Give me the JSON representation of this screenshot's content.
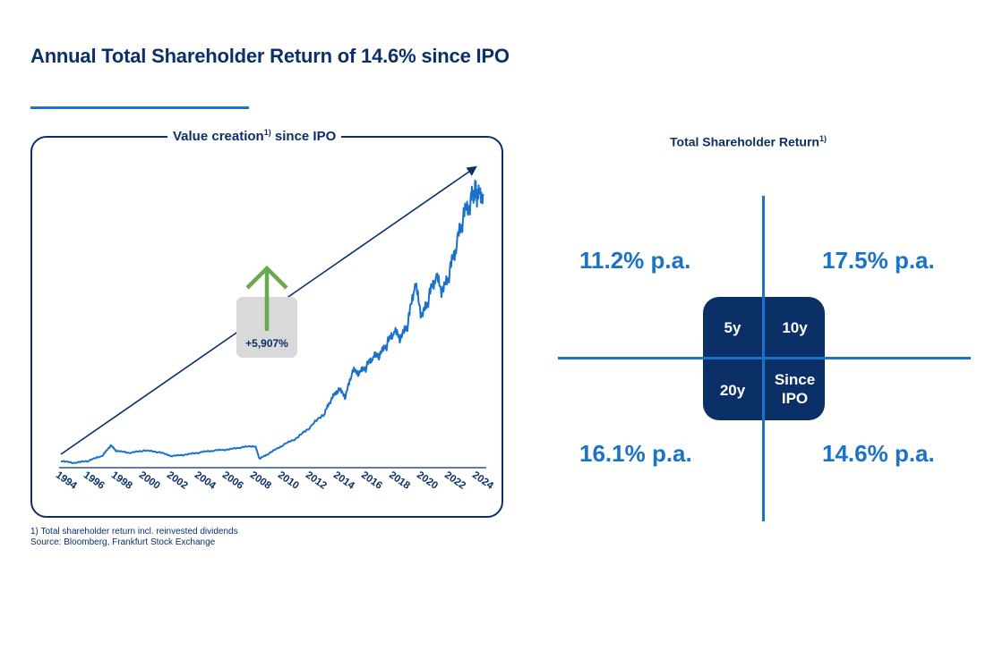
{
  "header": {
    "title": "Annual Total Shareholder Return of 14.6% since IPO"
  },
  "colors": {
    "navy": "#0b3068",
    "blue": "#1a73c9",
    "green": "#6aa84f",
    "callout_bg": "#d9d9d9"
  },
  "icons": {
    "arrow_up": "green-up-arrow-icon",
    "trend_arrow": "trend-arrow-icon"
  },
  "chart_data": {
    "type": "line",
    "title": "Value creation",
    "title_sup": "1)",
    "title_suffix": " since IPO",
    "x_tick_labels": [
      "1994",
      "1996",
      "1998",
      "2000",
      "2002",
      "2004",
      "2006",
      "2008",
      "2010",
      "2012",
      "2014",
      "2016",
      "2018",
      "2020",
      "2022",
      "2024"
    ],
    "xlim": [
      1994,
      2024.5
    ],
    "ylim": [
      0,
      6000
    ],
    "grid": false,
    "legend": "none",
    "annotation": {
      "text": "+5,907%",
      "value": 5907
    },
    "series": [
      {
        "x": [
          1994,
          1995,
          1996,
          1997,
          1997.6,
          1998,
          1999,
          2000,
          2001,
          2002,
          2003,
          2004,
          2005,
          2006,
          2007,
          2008,
          2008.3,
          2009,
          2010,
          2011,
          2012,
          2013,
          2013.5,
          2014,
          2014.5,
          2015,
          2015.5,
          2016,
          2016.5,
          2017,
          2017.5,
          2018,
          2018.5,
          2019,
          2019.5,
          2020,
          2020.5,
          2021,
          2021.5,
          2022,
          2022.5,
          2023,
          2023.5,
          2023.8,
          2024,
          2024.4
        ],
        "y": [
          100,
          60,
          110,
          220,
          440,
          320,
          280,
          330,
          300,
          210,
          240,
          290,
          330,
          350,
          400,
          430,
          150,
          270,
          450,
          600,
          850,
          1150,
          1450,
          1650,
          1500,
          2050,
          2000,
          2150,
          2350,
          2400,
          2650,
          2900,
          2750,
          3100,
          3950,
          3200,
          3650,
          4100,
          3750,
          4200,
          4800,
          5400,
          5700,
          6000,
          5800,
          5907
        ]
      }
    ]
  },
  "footnote": {
    "line1": "1) Total shareholder return incl. reinvested dividends",
    "line2": "Source: Bloomberg, Frankfurt Stock Exchange"
  },
  "tsr": {
    "title": "Total Shareholder Return",
    "title_sup": "1)",
    "q_tl_value": "11.2% p.a.",
    "q_tr_value": "17.5% p.a.",
    "q_bl_value": "16.1% p.a.",
    "q_br_value": "14.6% p.a.",
    "label_5y": "5y",
    "label_10y": "10y",
    "label_20y": "20y",
    "label_since_ipo": "Since\nIPO"
  }
}
